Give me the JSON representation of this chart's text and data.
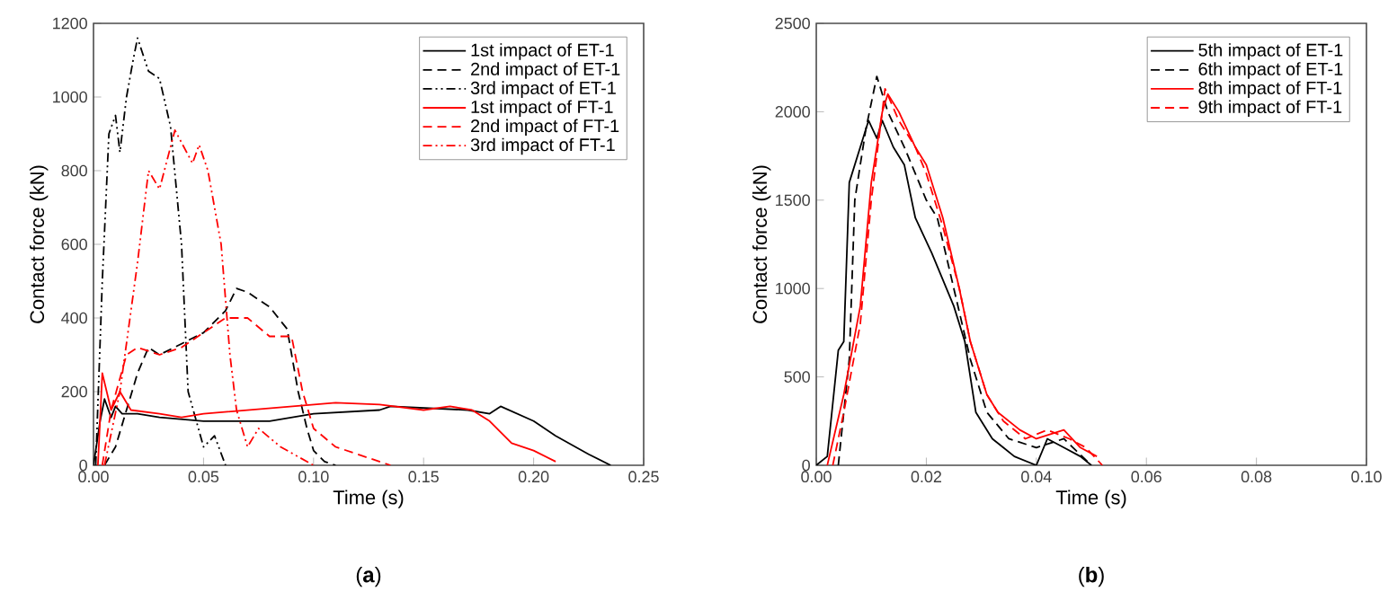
{
  "chart_data": [
    {
      "type": "line",
      "xlabel": "Time (s)",
      "ylabel": "Contact force (kN)",
      "legend": "top right",
      "annotations": [
        "(**a**)"
      ],
      "xlim": [
        0,
        0.25
      ],
      "ylim": [
        0,
        1200
      ],
      "xticks": [
        {
          "value": 0,
          "label": "0.00"
        },
        {
          "value": 0.05,
          "label": "0.05"
        },
        {
          "value": 0.1,
          "label": "0.10"
        },
        {
          "value": 0.15,
          "label": "0.15"
        },
        {
          "value": 0.2,
          "label": "0.20"
        },
        {
          "value": 0.25,
          "label": "0.25"
        }
      ],
      "yticks": [
        0,
        200,
        400,
        600,
        800,
        1000,
        1200
      ],
      "series": [
        {
          "name": "1st impact of ET-1",
          "color": "#000000",
          "line_style": "solid",
          "x": [
            0,
            0.003,
            0.005,
            0.008,
            0.01,
            0.013,
            0.02,
            0.03,
            0.05,
            0.08,
            0.1,
            0.13,
            0.135,
            0.17,
            0.18,
            0.185,
            0.2,
            0.21,
            0.225,
            0.235
          ],
          "values": [
            0,
            120,
            180,
            130,
            160,
            140,
            140,
            130,
            120,
            120,
            140,
            150,
            160,
            150,
            140,
            160,
            120,
            80,
            30,
            0
          ]
        },
        {
          "name": "2nd impact of ET-1",
          "color": "#000000",
          "line_style": "dashed",
          "x": [
            0.005,
            0.01,
            0.015,
            0.02,
            0.025,
            0.03,
            0.04,
            0.05,
            0.06,
            0.065,
            0.07,
            0.08,
            0.088,
            0.093,
            0.097,
            0.1,
            0.105,
            0.11
          ],
          "values": [
            0,
            50,
            150,
            250,
            320,
            300,
            330,
            360,
            420,
            480,
            470,
            430,
            370,
            200,
            100,
            40,
            10,
            0
          ]
        },
        {
          "name": "3rd impact of ET-1",
          "color": "#000000",
          "line_style": "dashdotdotted",
          "x": [
            0.001,
            0.004,
            0.007,
            0.01,
            0.012,
            0.015,
            0.018,
            0.02,
            0.025,
            0.03,
            0.035,
            0.04,
            0.043,
            0.05,
            0.055,
            0.06
          ],
          "values": [
            0,
            500,
            900,
            950,
            850,
            1000,
            1100,
            1160,
            1070,
            1050,
            920,
            600,
            200,
            50,
            80,
            0
          ]
        },
        {
          "name": "1st impact of FT-1",
          "color": "#ff0000",
          "line_style": "solid",
          "x": [
            0.002,
            0.004,
            0.008,
            0.012,
            0.017,
            0.03,
            0.04,
            0.05,
            0.07,
            0.09,
            0.11,
            0.13,
            0.15,
            0.162,
            0.172,
            0.18,
            0.19,
            0.2,
            0.21
          ],
          "values": [
            0,
            250,
            150,
            200,
            150,
            140,
            130,
            140,
            150,
            160,
            170,
            165,
            150,
            160,
            150,
            120,
            60,
            40,
            10
          ]
        },
        {
          "name": "2nd impact of FT-1",
          "color": "#ff0000",
          "line_style": "dashed",
          "x": [
            0.004,
            0.008,
            0.015,
            0.02,
            0.03,
            0.04,
            0.05,
            0.06,
            0.07,
            0.08,
            0.09,
            0.095,
            0.1,
            0.11,
            0.12,
            0.135
          ],
          "values": [
            0,
            150,
            300,
            320,
            300,
            320,
            360,
            400,
            400,
            350,
            350,
            200,
            100,
            50,
            30,
            0
          ]
        },
        {
          "name": "3rd impact of FT-1",
          "color": "#ff0000",
          "line_style": "dashdotdotted",
          "x": [
            0.005,
            0.012,
            0.02,
            0.025,
            0.03,
            0.037,
            0.045,
            0.048,
            0.052,
            0.058,
            0.062,
            0.065,
            0.07,
            0.075,
            0.085,
            0.1
          ],
          "values": [
            0,
            200,
            550,
            800,
            750,
            910,
            820,
            870,
            800,
            600,
            300,
            150,
            50,
            100,
            50,
            0
          ]
        }
      ]
    },
    {
      "type": "line",
      "xlabel": "Time (s)",
      "ylabel": "Contact force (kN)",
      "legend": "top right",
      "annotations": [
        "(**b**)"
      ],
      "xlim": [
        0,
        0.1
      ],
      "ylim": [
        0,
        2500
      ],
      "xticks": [
        {
          "value": 0,
          "label": "0.00"
        },
        {
          "value": 0.02,
          "label": "0.02"
        },
        {
          "value": 0.04,
          "label": "0.04"
        },
        {
          "value": 0.06,
          "label": "0.06"
        },
        {
          "value": 0.08,
          "label": "0.08"
        },
        {
          "value": 0.1,
          "label": "0.10"
        }
      ],
      "yticks": [
        0,
        500,
        1000,
        1500,
        2000,
        2500
      ],
      "series": [
        {
          "name": "5th impact of ET-1",
          "color": "#000000",
          "line_style": "solid",
          "x": [
            0,
            0.002,
            0.004,
            0.005,
            0.006,
            0.008,
            0.0095,
            0.011,
            0.012,
            0.014,
            0.016,
            0.018,
            0.021,
            0.025,
            0.027,
            0.029,
            0.032,
            0.034,
            0.036,
            0.04,
            0.042,
            0.045,
            0.048,
            0.05
          ],
          "values": [
            0,
            50,
            650,
            700,
            1600,
            1800,
            1950,
            1850,
            1950,
            1800,
            1700,
            1400,
            1200,
            900,
            700,
            300,
            150,
            100,
            50,
            0,
            150,
            100,
            50,
            0
          ]
        },
        {
          "name": "6th impact of ET-1",
          "color": "#000000",
          "line_style": "dashed",
          "x": [
            0.004,
            0.006,
            0.007,
            0.009,
            0.011,
            0.013,
            0.016,
            0.02,
            0.022,
            0.025,
            0.028,
            0.031,
            0.035,
            0.04,
            0.045,
            0.05
          ],
          "values": [
            0,
            600,
            1500,
            1900,
            2200,
            2000,
            1800,
            1500,
            1400,
            1000,
            600,
            300,
            150,
            100,
            150,
            0
          ]
        },
        {
          "name": "8th impact of FT-1",
          "color": "#ff0000",
          "line_style": "solid",
          "x": [
            0.002,
            0.005,
            0.008,
            0.01,
            0.012,
            0.013,
            0.015,
            0.018,
            0.02,
            0.023,
            0.026,
            0.028,
            0.031,
            0.033,
            0.037,
            0.04,
            0.045,
            0.048,
            0.051
          ],
          "values": [
            0,
            400,
            900,
            1600,
            2000,
            2100,
            2000,
            1800,
            1700,
            1400,
            1000,
            700,
            400,
            300,
            200,
            150,
            200,
            100,
            50
          ]
        },
        {
          "name": "9th impact of FT-1",
          "color": "#ff0000",
          "line_style": "dashed",
          "x": [
            0.003,
            0.005,
            0.008,
            0.01,
            0.0125,
            0.015,
            0.018,
            0.02,
            0.023,
            0.026,
            0.028,
            0.031,
            0.034,
            0.038,
            0.042,
            0.046,
            0.049,
            0.052
          ],
          "values": [
            0,
            300,
            800,
            1500,
            2130,
            1950,
            1800,
            1650,
            1350,
            1000,
            700,
            400,
            250,
            150,
            200,
            150,
            100,
            0
          ]
        }
      ]
    }
  ]
}
